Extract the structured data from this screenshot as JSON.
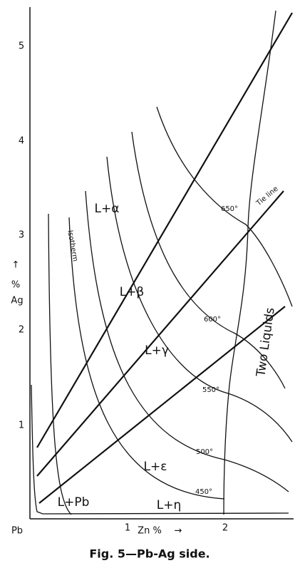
{
  "axes": {
    "origin": "Pb",
    "x_label": "Zn %",
    "x_arrow": "→",
    "y_arrow": "↑",
    "y_percent": "%",
    "y_label": "Ag",
    "x_ticks": [
      "1",
      "2"
    ],
    "y_ticks": [
      "1",
      "2",
      "3",
      "4",
      "5"
    ]
  },
  "regions": [
    "L+α",
    "L+β",
    "L+γ",
    "L+ε",
    "L+Pb",
    "L+η",
    "Two Liquids"
  ],
  "isotherms": [
    "650°",
    "600°",
    "550°",
    "500°",
    "450°"
  ],
  "annotations": [
    "Isotherm",
    "Tie line"
  ],
  "caption": "Fig. 5—Pb-Ag side."
}
